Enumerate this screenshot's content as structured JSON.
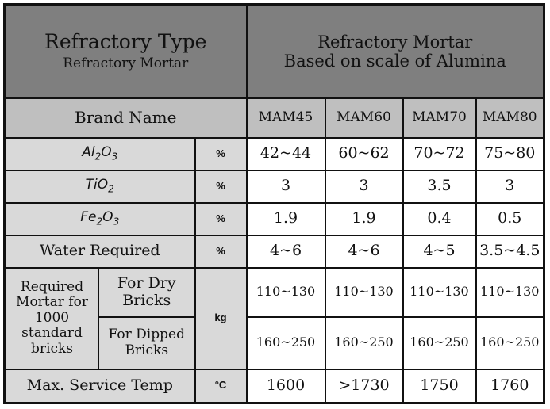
{
  "header": {
    "type_title": "Refractory Type",
    "type_subtitle": "Refractory Mortar",
    "right_line1": "Refractory Mortar",
    "right_line2": "Based on scale of Alumina"
  },
  "brand_row": {
    "label": "Brand Name",
    "models": [
      "MAM45",
      "MAM60",
      "MAM70",
      "MAM80"
    ]
  },
  "rows": {
    "al2o3": {
      "base": "Al",
      "s1": "2",
      "mid": "O",
      "s2": "3",
      "unit": "%",
      "values": [
        "42~44",
        "60~62",
        "70~72",
        "75~80"
      ]
    },
    "tio2": {
      "base": "TiO",
      "s1": "2",
      "unit": "%",
      "values": [
        "3",
        "3",
        "3.5",
        "3"
      ]
    },
    "fe2o3": {
      "base": "Fe",
      "s1": "2",
      "mid": "O",
      "s2": "3",
      "unit": "%",
      "values": [
        "1.9",
        "1.9",
        "0.4",
        "0.5"
      ]
    },
    "water": {
      "label": "Water Required",
      "unit": "%",
      "values": [
        "4~6",
        "4~6",
        "4~5",
        "3.5~4.5"
      ]
    },
    "mortar": {
      "label": "Required Mortar for 1000 standard bricks",
      "unit": "kg",
      "dry": {
        "label": "For Dry Bricks",
        "values": [
          "110~130",
          "110~130",
          "110~130",
          "110~130"
        ]
      },
      "dipped": {
        "label": "For Dipped Bricks",
        "values": [
          "160~250",
          "160~250",
          "160~250",
          "160~250"
        ]
      }
    },
    "temp": {
      "label": "Max. Service Temp",
      "unit": "°C",
      "values": [
        "1600",
        ">1730",
        "1750",
        "1760"
      ]
    }
  },
  "colors": {
    "header_bg": "#7f7f7f",
    "brand_row_bg": "#bfbfbf",
    "label_bg": "#d9d9d9",
    "value_bg": "#ffffff",
    "border": "#111111"
  }
}
